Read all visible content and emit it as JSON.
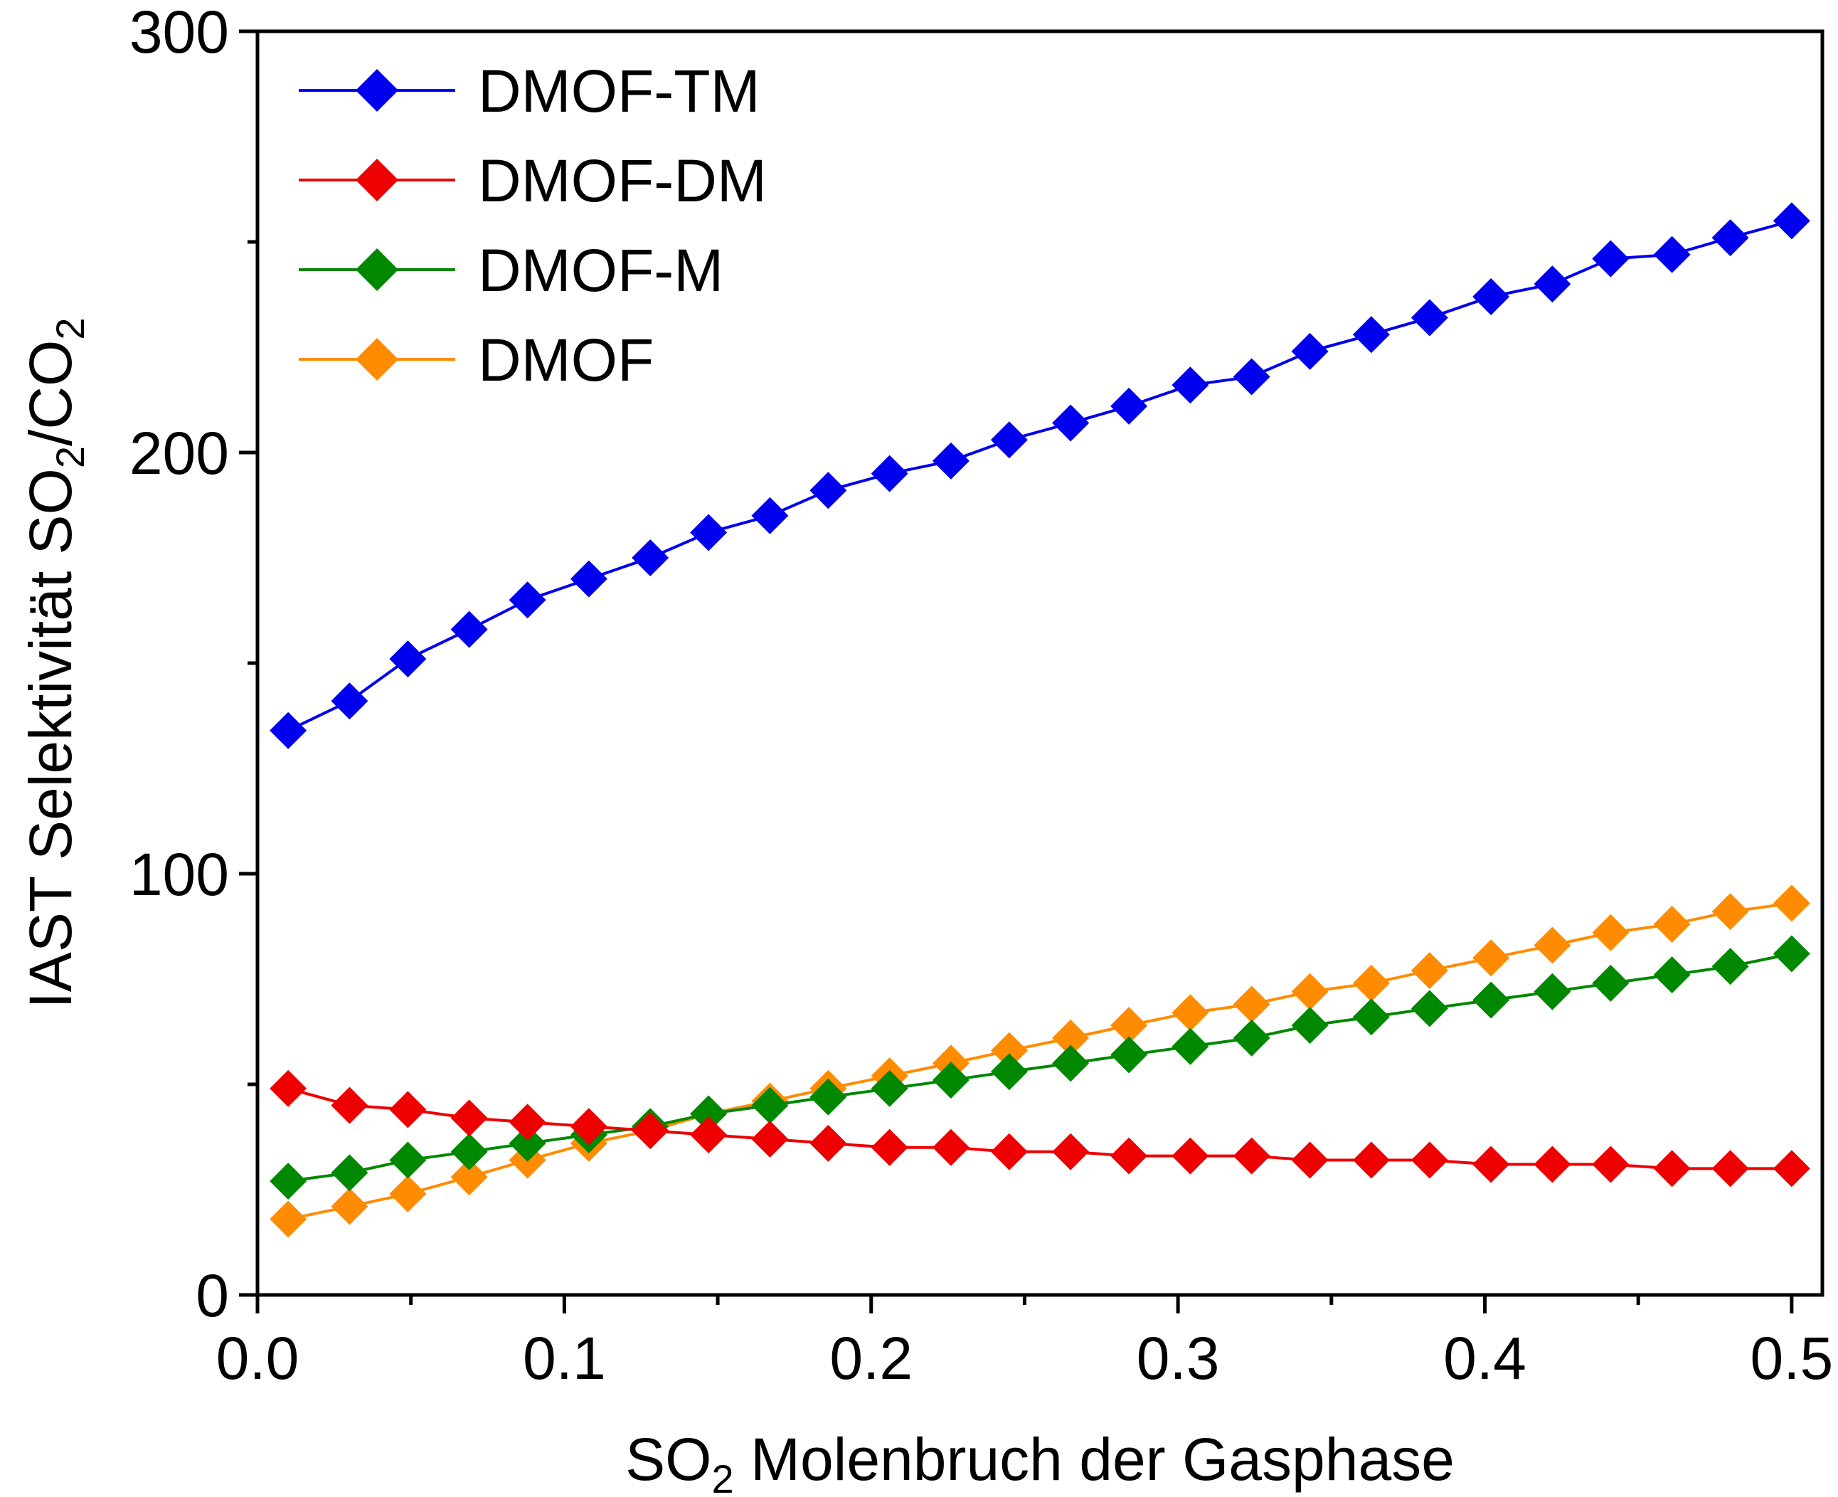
{
  "chart_data": {
    "type": "line",
    "xlabel_main": "SO",
    "xlabel_sub": "2",
    "xlabel_rest": " Molenbruch der Gasphase",
    "ylabel_prefix": "IAST Selektivität SO",
    "ylabel_sub1": "2",
    "ylabel_mid": "/CO",
    "ylabel_sub2": "2",
    "xlim": [
      0.0,
      0.51
    ],
    "ylim": [
      0,
      300
    ],
    "x_ticks": [
      "0.0",
      "0.1",
      "0.2",
      "0.3",
      "0.4",
      "0.5"
    ],
    "y_ticks": [
      "0",
      "100",
      "200",
      "300"
    ],
    "legend_position": "top-left",
    "x": [
      0.01,
      0.03,
      0.049,
      0.069,
      0.088,
      0.108,
      0.128,
      0.147,
      0.167,
      0.186,
      0.206,
      0.226,
      0.245,
      0.265,
      0.284,
      0.304,
      0.324,
      0.343,
      0.363,
      0.382,
      0.402,
      0.422,
      0.441,
      0.461,
      0.48,
      0.5
    ],
    "series": [
      {
        "name": "DMOF-TM",
        "color": "#0000ee",
        "values": [
          134,
          141,
          151,
          158,
          165,
          170,
          175,
          181,
          185,
          191,
          195,
          198,
          203,
          207,
          211,
          216,
          218,
          224,
          228,
          232,
          237,
          240,
          246,
          247,
          251,
          255
        ]
      },
      {
        "name": "DMOF-DM",
        "color": "#ee0000",
        "values": [
          49,
          45,
          44,
          42,
          41,
          40,
          39,
          38,
          37,
          36,
          35,
          35,
          34,
          34,
          33,
          33,
          33,
          32,
          32,
          32,
          31,
          31,
          31,
          30,
          30,
          30
        ]
      },
      {
        "name": "DMOF-M",
        "color": "#008800",
        "values": [
          27,
          29,
          32,
          34,
          36,
          38,
          40,
          43,
          45,
          47,
          49,
          51,
          53,
          55,
          57,
          59,
          61,
          64,
          66,
          68,
          70,
          72,
          74,
          76,
          78,
          81
        ]
      },
      {
        "name": "DMOF",
        "color": "#ff8c00",
        "values": [
          18,
          21,
          24,
          28,
          32,
          36,
          39,
          43,
          46,
          49,
          52,
          55,
          58,
          61,
          64,
          67,
          69,
          72,
          74,
          77,
          80,
          83,
          86,
          88,
          91,
          93
        ]
      }
    ]
  }
}
